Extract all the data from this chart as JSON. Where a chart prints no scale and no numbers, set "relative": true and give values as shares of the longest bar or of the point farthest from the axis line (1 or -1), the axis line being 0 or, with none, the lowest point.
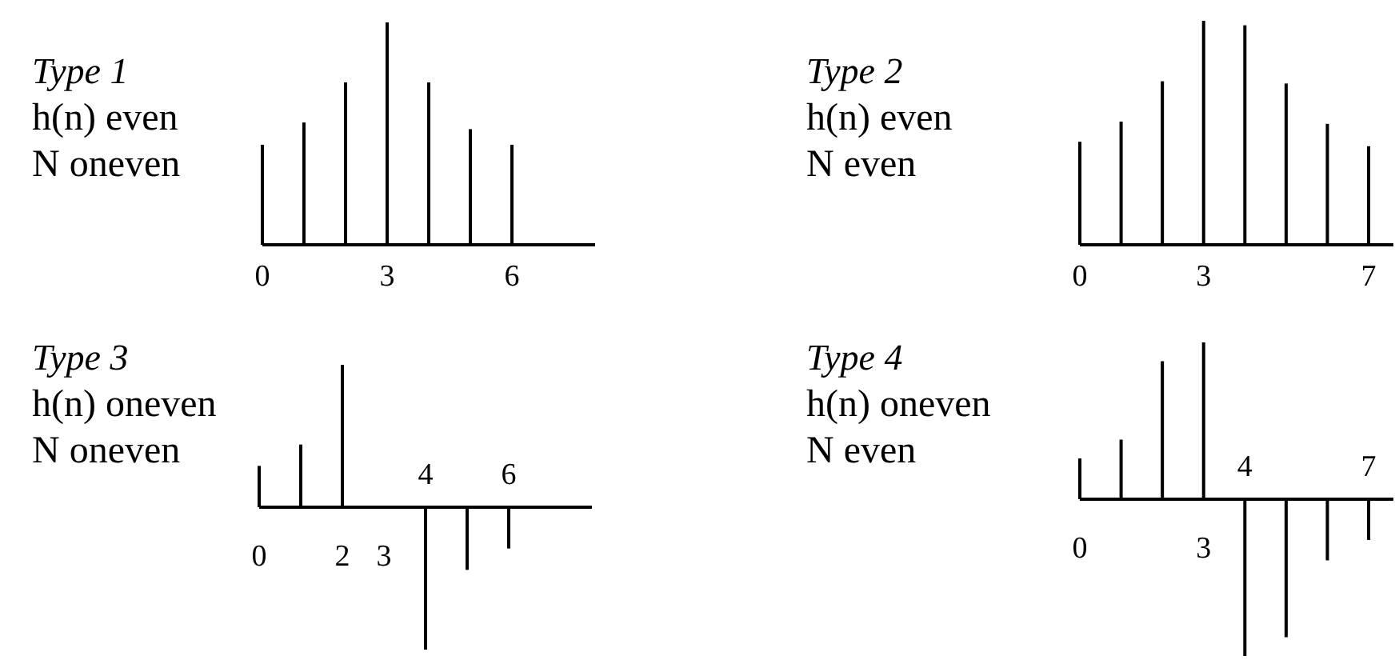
{
  "chart_data": [
    {
      "type": "bar",
      "title": "Type 1",
      "annotations": [
        "h(n) even",
        "N oneven"
      ],
      "x": [
        0,
        1,
        2,
        3,
        4,
        5,
        6
      ],
      "values": [
        0.45,
        0.55,
        0.73,
        1,
        0.73,
        0.52,
        0.45
      ],
      "relative": true,
      "xlim": [
        0,
        8
      ],
      "xticks": [
        0,
        3,
        6
      ],
      "color": "#000000"
    },
    {
      "type": "bar",
      "title": "Type 2",
      "annotations": [
        "h(n) even",
        "N even"
      ],
      "x": [
        0,
        1,
        2,
        3,
        4,
        5,
        6,
        7
      ],
      "values": [
        0.46,
        0.55,
        0.73,
        1,
        0.98,
        0.72,
        0.54,
        0.44
      ],
      "relative": true,
      "xlim": [
        0,
        7.6
      ],
      "xticks": [
        0,
        3,
        7
      ],
      "color": "#000000"
    },
    {
      "type": "bar",
      "title": "Type 3",
      "annotations": [
        "h(n) oneven",
        "N oneven"
      ],
      "x": [
        0,
        1,
        2,
        3,
        4,
        5,
        6
      ],
      "values": [
        0.29,
        0.44,
        1,
        0,
        -1,
        -0.44,
        -0.29
      ],
      "relative": true,
      "xlim": [
        0,
        8
      ],
      "xticks": [
        0,
        2,
        3
      ],
      "x2lim": [
        0,
        8
      ],
      "x2ticks": [
        4,
        6
      ],
      "color": "#000000"
    },
    {
      "type": "bar",
      "title": "Type 4",
      "annotations": [
        "h(n) oneven",
        "N even"
      ],
      "x": [
        0,
        1,
        2,
        3,
        4,
        5,
        6,
        7
      ],
      "values": [
        0.26,
        0.38,
        0.88,
        1,
        -1,
        -0.88,
        -0.39,
        -0.26
      ],
      "relative": true,
      "xlim": [
        0,
        7.6
      ],
      "xticks": [
        0,
        3
      ],
      "x2lim": [
        0,
        7.6
      ],
      "x2ticks": [
        4,
        7
      ],
      "color": "#000000"
    }
  ]
}
